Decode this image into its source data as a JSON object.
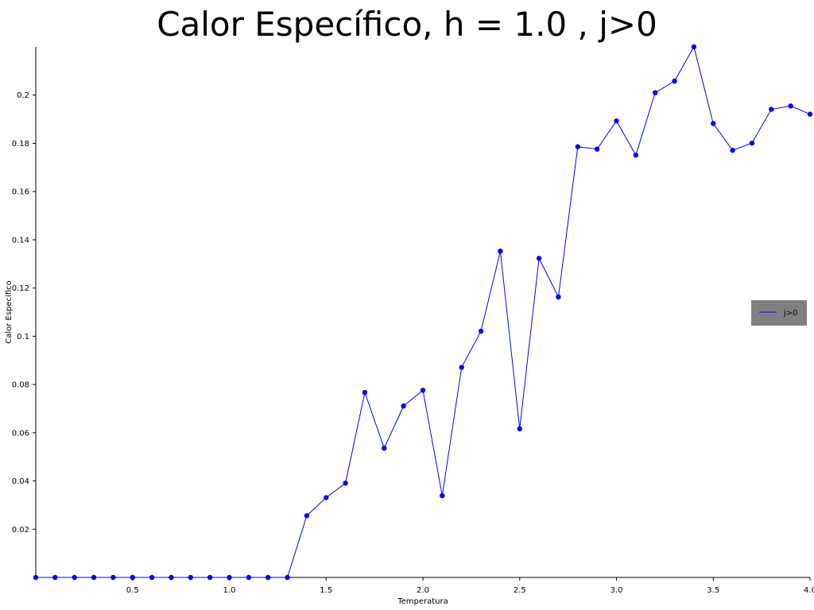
{
  "chart_data": {
    "type": "line",
    "title": "Calor Específico, h = 1.0 , j>0",
    "xlabel": "Temperatura",
    "ylabel": "Calor Específico",
    "xlim": [
      0.0,
      4.0
    ],
    "ylim": [
      0.0,
      0.22
    ],
    "x_ticks": [
      0.5,
      1.0,
      1.5,
      2.0,
      2.5,
      3.0,
      3.5,
      4.0
    ],
    "x_tick_labels": [
      "0.5",
      "1.0",
      "1.5",
      "2.0",
      "2.5",
      "3.0",
      "3.5",
      "4.0"
    ],
    "y_ticks": [
      0.02,
      0.04,
      0.06,
      0.08,
      0.1,
      0.12,
      0.14,
      0.16,
      0.18,
      0.2
    ],
    "y_tick_labels": [
      "0.02",
      "0.04",
      "0.06",
      "0.08",
      "0.1",
      "0.12",
      "0.14",
      "0.16",
      "0.18",
      "0.2"
    ],
    "grid": false,
    "legend_position": "center-right",
    "series": [
      {
        "name": "j>0",
        "color": "#0000ff",
        "marker": "circle",
        "x": [
          0.0,
          0.1,
          0.2,
          0.3,
          0.4,
          0.5,
          0.6,
          0.7,
          0.8,
          0.9,
          1.0,
          1.1,
          1.2,
          1.3,
          1.4,
          1.5,
          1.6,
          1.7,
          1.8,
          1.9,
          2.0,
          2.1,
          2.2,
          2.3,
          2.4,
          2.5,
          2.6,
          2.7,
          2.8,
          2.9,
          3.0,
          3.1,
          3.2,
          3.3,
          3.4,
          3.5,
          3.6,
          3.7,
          3.8,
          3.9,
          4.0
        ],
        "y": [
          0.0,
          0.0,
          0.0,
          0.0,
          0.0,
          0.0,
          0.0,
          0.0,
          0.0,
          0.0,
          0.0,
          0.0,
          0.0,
          0.0,
          0.0256,
          0.0331,
          0.0391,
          0.0767,
          0.0536,
          0.0711,
          0.0776,
          0.0339,
          0.0871,
          0.1021,
          0.1353,
          0.0616,
          0.1323,
          0.1163,
          0.1786,
          0.1776,
          0.1893,
          0.1751,
          0.201,
          0.2058,
          0.22,
          0.1882,
          0.1771,
          0.1801,
          0.1941,
          0.1955,
          0.1921
        ]
      }
    ]
  }
}
